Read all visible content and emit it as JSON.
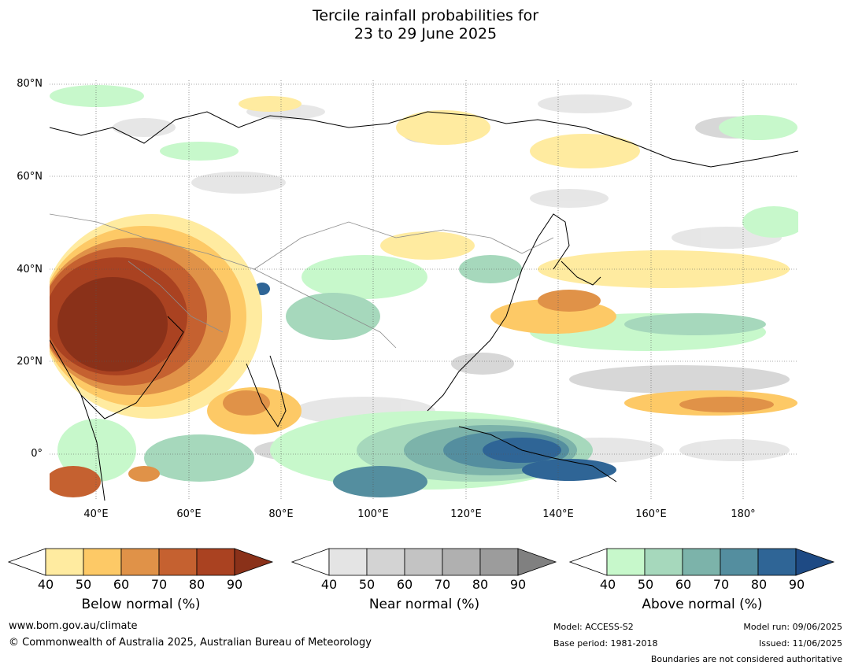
{
  "title_line1": "Tercile rainfall probabilities for",
  "title_line2": "23 to 29 June 2025",
  "lat_labels": [
    "80°N",
    "60°N",
    "40°N",
    "20°N",
    "0°"
  ],
  "lon_labels": [
    "40°E",
    "60°E",
    "80°E",
    "100°E",
    "120°E",
    "140°E",
    "160°E",
    "180°"
  ],
  "colorbars": [
    {
      "title": "Below normal (%)",
      "ticks": [
        "40",
        "50",
        "60",
        "70",
        "80",
        "90"
      ],
      "colors": [
        "#ffffff",
        "#ffeba0",
        "#fdc966",
        "#e09248",
        "#c56130",
        "#aa4221",
        "#8a3119"
      ]
    },
    {
      "title": "Near normal (%)",
      "ticks": [
        "40",
        "50",
        "60",
        "70",
        "80",
        "90"
      ],
      "colors": [
        "#ffffff",
        "#e4e4e4",
        "#d3d3d3",
        "#c3c3c3",
        "#b0b0b0",
        "#9c9c9c",
        "#808080"
      ]
    },
    {
      "title": "Above normal (%)",
      "ticks": [
        "40",
        "50",
        "60",
        "70",
        "80",
        "90"
      ],
      "colors": [
        "#ffffff",
        "#c7f8cb",
        "#a6d8bc",
        "#7cb3aa",
        "#548e9f",
        "#2f6596",
        "#1e4a84"
      ]
    }
  ],
  "footer": {
    "website": "www.bom.gov.au/climate",
    "copyright": "© Commonwealth of Australia 2025, Australian Bureau of Meteorology",
    "model": "Model: ACCESS-S2",
    "base_period": "Base period: 1981-2018",
    "model_run": "Model run: 09/06/2025",
    "issued": "Issued: 11/06/2025",
    "disclaimer": "Boundaries are not considered authoritative"
  }
}
